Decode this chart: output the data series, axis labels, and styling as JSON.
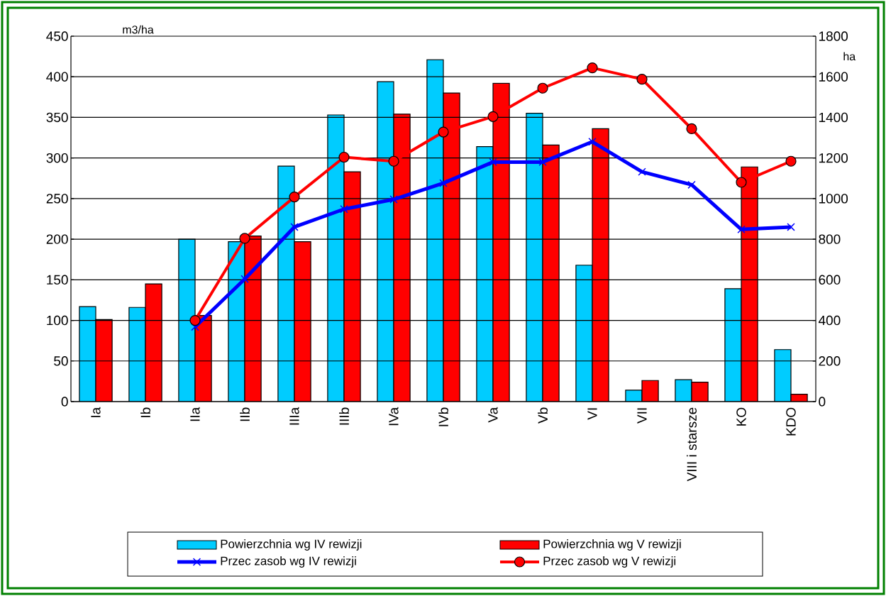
{
  "chart_data": {
    "type": "bar",
    "ylabel": "m3/ha",
    "y2label": "ha",
    "categories": [
      "Ia",
      "Ib",
      "IIa",
      "IIb",
      "IIIa",
      "IIIb",
      "IVa",
      "IVb",
      "Va",
      "Vb",
      "VI",
      "VII",
      "VIII i starsze",
      "KO",
      "KDO"
    ],
    "series": [
      {
        "name": "Powierzchnia wg IV rewizji",
        "axis": "y2",
        "color": "#00ccff",
        "values": [
          468,
          464,
          800,
          788,
          1160,
          1412,
          1576,
          1684,
          1256,
          1420,
          672,
          56,
          108,
          556,
          256
        ]
      },
      {
        "name": "Powierzchnia wg V rewizji",
        "axis": "y2",
        "color": "#ff0000",
        "values": [
          404,
          580,
          424,
          816,
          788,
          1132,
          1416,
          1520,
          1568,
          1264,
          1344,
          104,
          96,
          1156,
          36
        ]
      },
      {
        "name": "Przec zasob wg IV rewizji",
        "type": "line",
        "color": "#0000ff",
        "marker": "cross",
        "values": [
          null,
          null,
          92,
          151,
          215,
          237,
          249,
          269,
          295,
          295,
          320,
          283,
          267,
          212,
          215
        ]
      },
      {
        "name": "Przec zasob wg V rewizji",
        "type": "line",
        "color": "#ff0000",
        "marker": "circle",
        "values": [
          null,
          null,
          100,
          201,
          252,
          301,
          296,
          332,
          351,
          386,
          411,
          397,
          336,
          270,
          296
        ]
      }
    ],
    "ylim": [
      0,
      450
    ],
    "yticks": [
      0,
      50,
      100,
      150,
      200,
      250,
      300,
      350,
      400,
      450
    ],
    "y2lim": [
      0,
      1800
    ],
    "y2ticks": [
      0,
      200,
      400,
      600,
      800,
      1000,
      1200,
      1400,
      1600,
      1800
    ],
    "grid": "y",
    "legend": "bottom"
  }
}
